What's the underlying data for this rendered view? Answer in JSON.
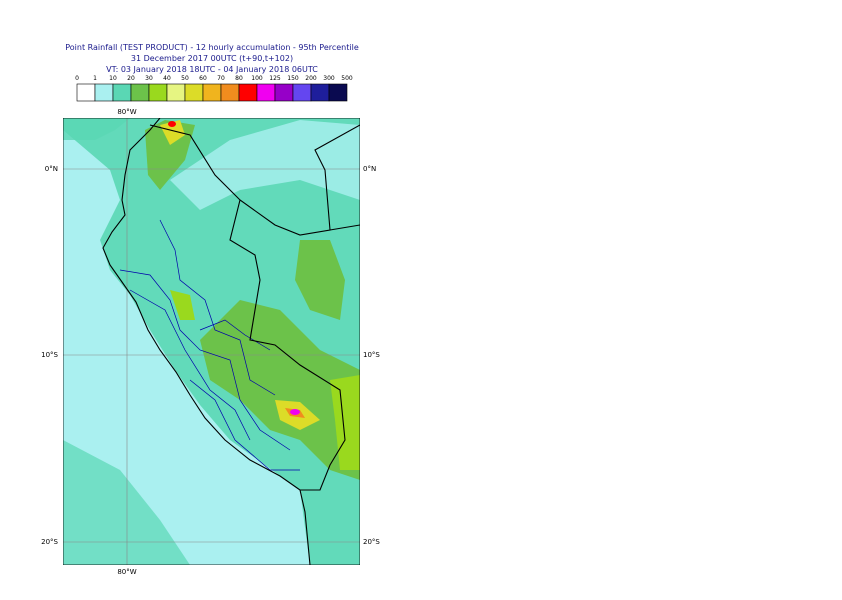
{
  "header": {
    "title": "Point Rainfall (TEST PRODUCT) - 12 hourly accumulation - 95th Percentile",
    "subtitle": "31 December 2017 00UTC (t+90,t+102)",
    "valid": "VT: 03 January 2018 18UTC - 04 January 2018 06UTC"
  },
  "legend": {
    "labels": [
      "0",
      "1",
      "10",
      "20",
      "30",
      "40",
      "50",
      "60",
      "70",
      "80",
      "100",
      "125",
      "150",
      "200",
      "300",
      "500"
    ],
    "colors": [
      "#ffffff",
      "#aaf0f0",
      "#5ad7b4",
      "#6cc24a",
      "#9ad91e",
      "#e6f582",
      "#dcdc28",
      "#f0b41e",
      "#f08c1e",
      "#ff0000",
      "#f000f0",
      "#9600c8",
      "#6446f0",
      "#1e1e9b",
      "#0a0a50"
    ]
  },
  "map": {
    "lon_labels": [
      "80°W"
    ],
    "lat_labels": [
      "0°N",
      "10°S",
      "20°S"
    ]
  }
}
